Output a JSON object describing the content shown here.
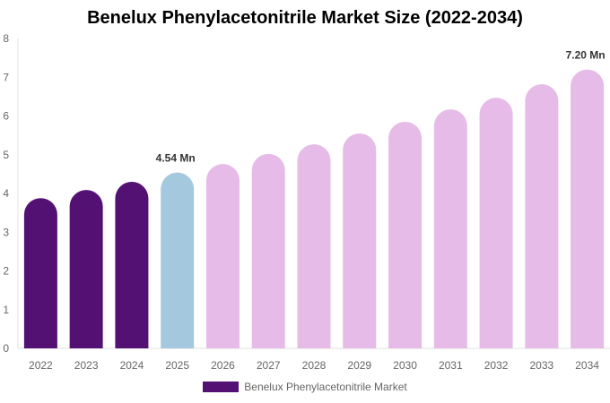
{
  "chart_data": {
    "type": "bar",
    "title": "Benelux Phenylacetonitrile Market Size (2022-2034)",
    "categories": [
      "2022",
      "2023",
      "2024",
      "2025",
      "2026",
      "2027",
      "2028",
      "2029",
      "2030",
      "2031",
      "2032",
      "2033",
      "2034"
    ],
    "series": [
      {
        "name": "Benelux Phenylacetonitrile Market",
        "values": [
          3.88,
          4.09,
          4.3,
          4.54,
          4.76,
          5.02,
          5.27,
          5.55,
          5.85,
          6.17,
          6.47,
          6.82,
          7.2
        ]
      }
    ],
    "data_labels": {
      "3": "4.54 Mn",
      "12": "7.20 Mn"
    },
    "ylim": [
      0,
      8
    ],
    "yticks": [
      0,
      1,
      2,
      3,
      4,
      5,
      6,
      7,
      8
    ],
    "grid": false,
    "legend": "bottom",
    "colors": {
      "historical": "#521173",
      "current": "#a4c9de",
      "forecast": "#e6bbe8"
    }
  }
}
